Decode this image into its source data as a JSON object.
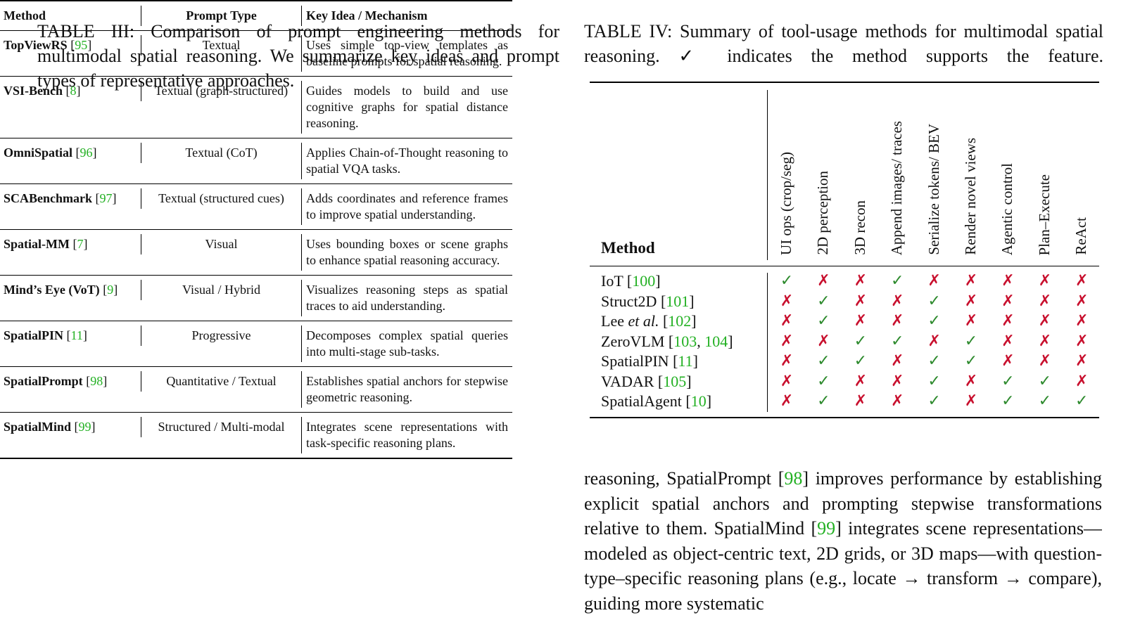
{
  "table_iii": {
    "caption": "TABLE III: Comparison of prompt engineering methods for multimodal spatial reasoning. We summarize key ideas and prompt types of representative approaches.",
    "headers": [
      "Method",
      "Prompt Type",
      "Key Idea / Mechanism"
    ],
    "rows": [
      {
        "method": "TopViewRS",
        "refs": [
          "95"
        ],
        "prompt": "Textual",
        "idea": "Uses simple top-view templates as baseline prompts for spatial reasoning."
      },
      {
        "method": "VSI-Bench",
        "refs": [
          "8"
        ],
        "prompt": "Textual (graph-structured)",
        "idea": "Guides models to build and use cognitive graphs for spatial distance reasoning."
      },
      {
        "method": "OmniSpatial",
        "refs": [
          "96"
        ],
        "prompt": "Textual (CoT)",
        "idea": "Applies Chain-of-Thought reasoning to spatial VQA tasks."
      },
      {
        "method": "SCABenchmark",
        "refs": [
          "97"
        ],
        "prompt": "Textual (structured cues)",
        "idea": "Adds coordinates and reference frames to improve spatial understanding."
      },
      {
        "method": "Spatial-MM",
        "refs": [
          "7"
        ],
        "prompt": "Visual",
        "idea": "Uses bounding boxes or scene graphs to enhance spatial reasoning accuracy."
      },
      {
        "method": "Mind’s Eye (VoT)",
        "refs": [
          "9"
        ],
        "prompt": "Visual / Hybrid",
        "idea": "Visualizes reasoning steps as spatial traces to aid understanding."
      },
      {
        "method": "SpatialPIN",
        "refs": [
          "11"
        ],
        "prompt": "Progressive",
        "idea": "Decomposes complex spatial queries into multi-stage sub-tasks."
      },
      {
        "method": "SpatialPrompt",
        "refs": [
          "98"
        ],
        "prompt": "Quantitative / Textual",
        "idea": "Establishes spatial anchors for stepwise geometric reasoning."
      },
      {
        "method": "SpatialMind",
        "refs": [
          "99"
        ],
        "prompt": "Structured / Multi-modal",
        "idea": "Integrates scene representations with task-specific reasoning plans."
      }
    ]
  },
  "table_iv": {
    "caption": "TABLE IV: Summary of tool-usage methods for multimodal spatial reasoning. ✓ indicates the method supports the feature.",
    "method_header": "Method",
    "columns": [
      "UI ops (crop/seg)",
      "2D perception",
      "3D recon",
      "Append images/ traces",
      "Serialize tokens/ BEV",
      "Render novel views",
      "Agentic control",
      "Plan–Execute",
      "ReAct"
    ],
    "mark_colors": {
      "✓": "#2d8a2d",
      "✗": "#c8102e"
    },
    "rows": [
      {
        "method": "IoT",
        "refs": [
          "100"
        ],
        "marks": [
          "✓",
          "✗",
          "✗",
          "✓",
          "✗",
          "✗",
          "✗",
          "✗",
          "✗"
        ]
      },
      {
        "method": "Struct2D",
        "refs": [
          "101"
        ],
        "marks": [
          "✗",
          "✓",
          "✗",
          "✗",
          "✓",
          "✗",
          "✗",
          "✗",
          "✗"
        ]
      },
      {
        "method": "Lee",
        "method_italic": "et al.",
        "refs": [
          "102"
        ],
        "marks": [
          "✗",
          "✓",
          "✗",
          "✗",
          "✓",
          "✗",
          "✗",
          "✗",
          "✗"
        ]
      },
      {
        "method": "ZeroVLM",
        "refs": [
          "103",
          "104"
        ],
        "marks": [
          "✗",
          "✗",
          "✓",
          "✓",
          "✗",
          "✓",
          "✗",
          "✗",
          "✗"
        ]
      },
      {
        "method": "SpatialPIN",
        "refs": [
          "11"
        ],
        "marks": [
          "✗",
          "✓",
          "✓",
          "✗",
          "✓",
          "✓",
          "✗",
          "✗",
          "✗"
        ]
      },
      {
        "method": "VADAR",
        "refs": [
          "105"
        ],
        "marks": [
          "✗",
          "✓",
          "✗",
          "✗",
          "✓",
          "✗",
          "✓",
          "✓",
          "✗"
        ]
      },
      {
        "method": "SpatialAgent",
        "refs": [
          "10"
        ],
        "marks": [
          "✗",
          "✓",
          "✗",
          "✗",
          "✓",
          "✗",
          "✓",
          "✓",
          "✓"
        ]
      }
    ]
  },
  "paragraph": [
    {
      "text": "reasoning, SpatialPrompt "
    },
    {
      "ref": "98"
    },
    {
      "text": " improves performance by establishing explicit spatial anchors and prompting stepwise transformations relative to them. SpatialMind "
    },
    {
      "ref": "99"
    },
    {
      "text": " integrates scene representations—modeled as object-centric text, 2D grids, or 3D maps—with question-type–specific reasoning plans (e.g., locate → transform → compare), guiding more systematic"
    }
  ]
}
